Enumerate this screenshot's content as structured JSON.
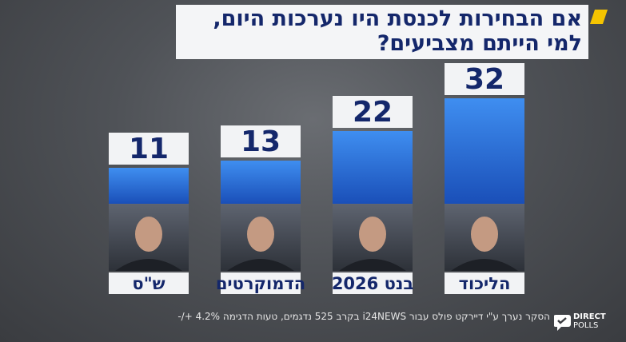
{
  "title_lines": [
    "אם הבחירות לכנסת היו נערכות היום,",
    "למי הייתם מצביעים?"
  ],
  "chart_data": {
    "type": "bar",
    "categories": [
      "ש\"ס",
      "הדמוקרטים",
      "בנט 2026",
      "הליכוד"
    ],
    "values": [
      11,
      13,
      22,
      32
    ],
    "ylim": [
      0,
      32
    ],
    "xlabel": "",
    "ylabel": "",
    "colors": {
      "bar_top": "#3f8ef0",
      "bar_bottom": "#1a4fb8",
      "label_bg": "#f2f3f5",
      "text": "#14276b"
    }
  },
  "footer_text": "הסקר נערך ע\"י דיירקט פולס עבור i24NEWS בקרב 525 נדגמים, טעות הדגימה 4.2% +/-",
  "logo": {
    "line1": "DIRECT",
    "line2": "POLLS",
    "icon": "chat-bubbles-check-icon"
  },
  "accent_color": "#f5c400"
}
